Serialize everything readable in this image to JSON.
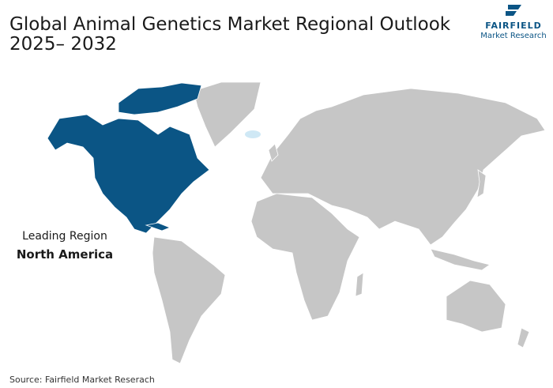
{
  "header": {
    "title_lines": [
      "Global Animal Genetics Market Regional Outlook",
      "2025– 2032"
    ],
    "logo": {
      "brand": "FAIRFIELD",
      "tagline": "Market Research"
    }
  },
  "map": {
    "leading_label": "Leading Region",
    "leading_region": "North America"
  },
  "footer": {
    "source": "Source: Fairfield Market Reserach"
  }
}
